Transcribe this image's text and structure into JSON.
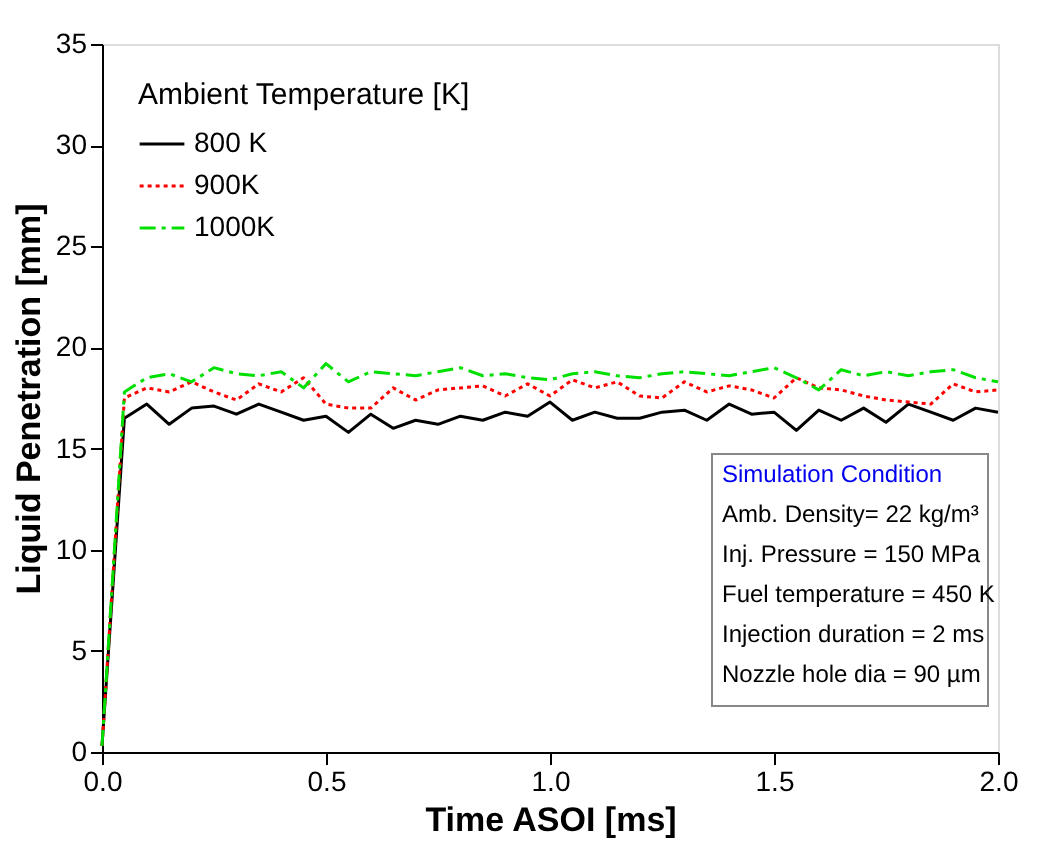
{
  "chart_data": {
    "type": "line",
    "xlabel": "Time ASOI [ms]",
    "ylabel": "Liquid Penetration [mm]",
    "legend_title": "Ambient Temperature [K]",
    "legend": "top left",
    "grid": false,
    "marker": "none",
    "xlim": [
      0,
      2.0
    ],
    "ylim": [
      0,
      35
    ],
    "xticks": [
      {
        "value": 0,
        "label": "0.0"
      },
      0.5,
      {
        "value": 1,
        "label": "1.0"
      },
      1.5,
      {
        "value": 2,
        "label": "2.0"
      }
    ],
    "yticks": [
      0,
      5,
      10,
      15,
      20,
      25,
      30,
      35
    ],
    "x": [
      0,
      0.05,
      0.1,
      0.15,
      0.2,
      0.25,
      0.3,
      0.35,
      0.4,
      0.45,
      0.5,
      0.55,
      0.6,
      0.65,
      0.7,
      0.75,
      0.8,
      0.85,
      0.9,
      0.95,
      1.0,
      1.05,
      1.1,
      1.15,
      1.2,
      1.25,
      1.3,
      1.35,
      1.4,
      1.45,
      1.5,
      1.55,
      1.6,
      1.65,
      1.7,
      1.75,
      1.8,
      1.85,
      1.9,
      1.95,
      2.0
    ],
    "series": [
      {
        "name": "800 K",
        "color": "#000000",
        "line_style": "solid",
        "values": [
          0.3,
          16.5,
          17.2,
          16.2,
          17.0,
          17.1,
          16.7,
          17.2,
          16.8,
          16.4,
          16.6,
          15.8,
          16.7,
          16.0,
          16.4,
          16.2,
          16.6,
          16.4,
          16.8,
          16.6,
          17.3,
          16.4,
          16.8,
          16.5,
          16.5,
          16.8,
          16.9,
          16.4,
          17.2,
          16.7,
          16.8,
          15.9,
          16.9,
          16.4,
          17.0,
          16.3,
          17.2,
          16.8,
          16.4,
          17.0,
          16.8
        ]
      },
      {
        "name": "900K",
        "color": "#ff0000",
        "line_style": "dotted",
        "values": [
          0.3,
          17.5,
          18.0,
          17.8,
          18.3,
          17.8,
          17.4,
          18.2,
          17.8,
          18.5,
          17.2,
          17.0,
          17.0,
          18.0,
          17.4,
          17.9,
          18.0,
          18.1,
          17.6,
          18.2,
          17.6,
          18.4,
          18.0,
          18.3,
          17.6,
          17.5,
          18.3,
          17.8,
          18.1,
          17.9,
          17.5,
          18.5,
          18.0,
          17.9,
          17.6,
          17.4,
          17.3,
          17.2,
          18.2,
          17.8,
          17.9
        ]
      },
      {
        "name": "1000K",
        "color": "#00e000",
        "line_style": "dashdot",
        "values": [
          0.3,
          17.8,
          18.5,
          18.7,
          18.3,
          19.0,
          18.7,
          18.6,
          18.8,
          18.0,
          19.2,
          18.3,
          18.8,
          18.7,
          18.6,
          18.8,
          19.0,
          18.6,
          18.7,
          18.5,
          18.4,
          18.7,
          18.8,
          18.6,
          18.5,
          18.7,
          18.8,
          18.7,
          18.6,
          18.8,
          19.0,
          18.5,
          17.9,
          18.9,
          18.6,
          18.8,
          18.6,
          18.8,
          18.9,
          18.5,
          18.3
        ]
      }
    ],
    "annotations": [
      "Simulation Condition",
      "Amb. Density=  22 kg/m³",
      "Inj. Pressure = 150 MPa",
      "Fuel temperature = 450 K",
      "Injection duration = 2 ms",
      "Nozzle hole dia = 90 µm"
    ]
  }
}
